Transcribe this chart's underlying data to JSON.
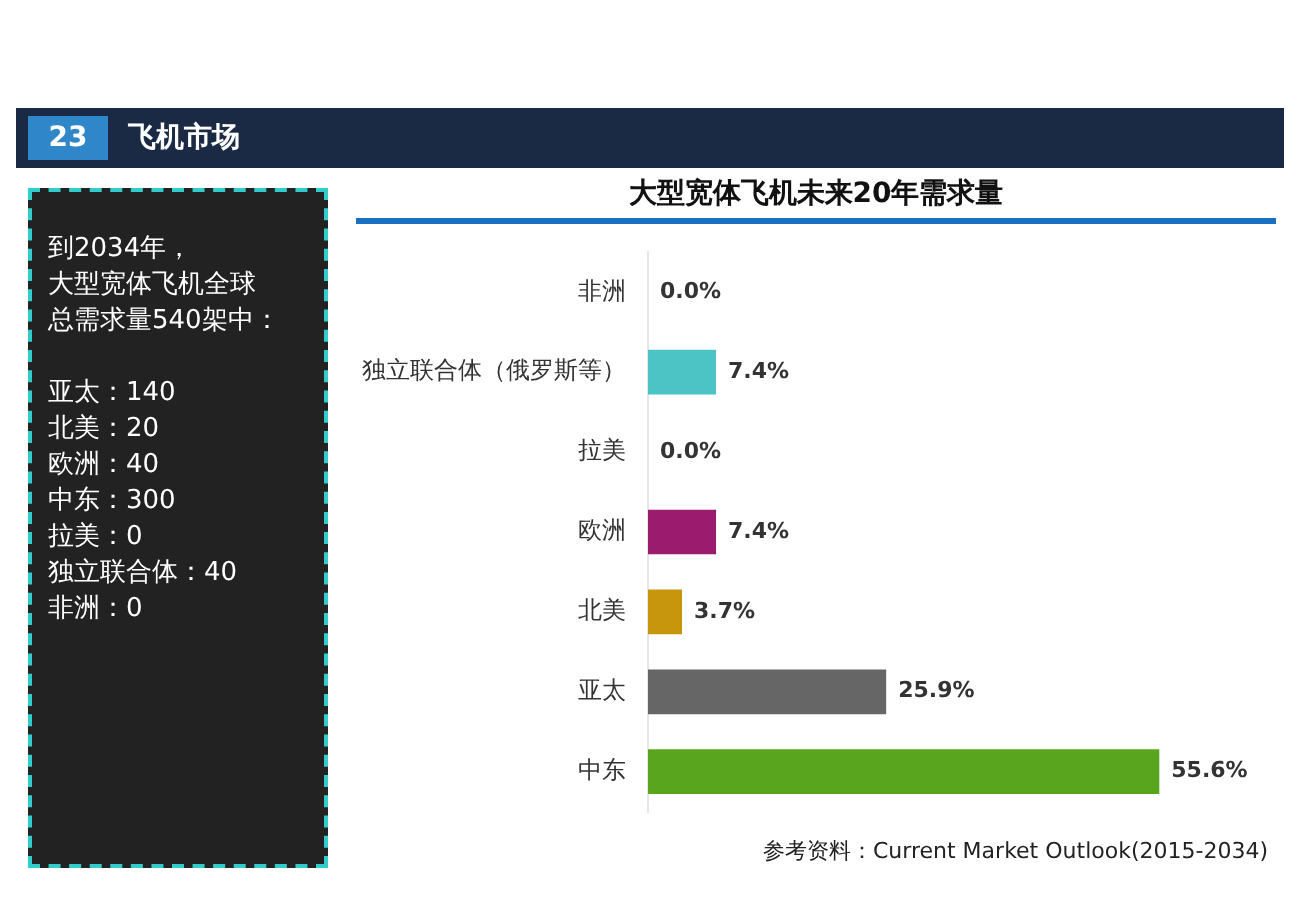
{
  "chart_data": {
    "type": "bar",
    "orientation": "horizontal",
    "title": "大型宽体飞机未来20年需求量",
    "categories": [
      "非洲",
      "独立联合体（俄罗斯等）",
      "拉美",
      "欧洲",
      "北美",
      "亚太",
      "中东"
    ],
    "values": [
      0.0,
      7.4,
      0.0,
      7.4,
      3.7,
      25.9,
      55.6
    ],
    "value_labels": [
      "0.0%",
      "7.4%",
      "0.0%",
      "7.4%",
      "3.7%",
      "25.9%",
      "55.6%"
    ],
    "colors": [
      "#d9534f",
      "#4cc3c4",
      "#a0a0a0",
      "#9b1b6e",
      "#c8960c",
      "#666666",
      "#5aa51e"
    ],
    "tick_labels": "y",
    "grid": false,
    "legend": false,
    "annotations": [
      "23",
      "飞机市场",
      "到2034年，",
      "大型宽体飞机全球",
      "总需求量540架中：",
      "亚太：140",
      "北美：20",
      "欧洲：40",
      "中东：300",
      "拉美：0",
      "独立联合体：40",
      "非洲：0",
      "参考资料：Current Market Outlook(2015-2034)"
    ]
  }
}
